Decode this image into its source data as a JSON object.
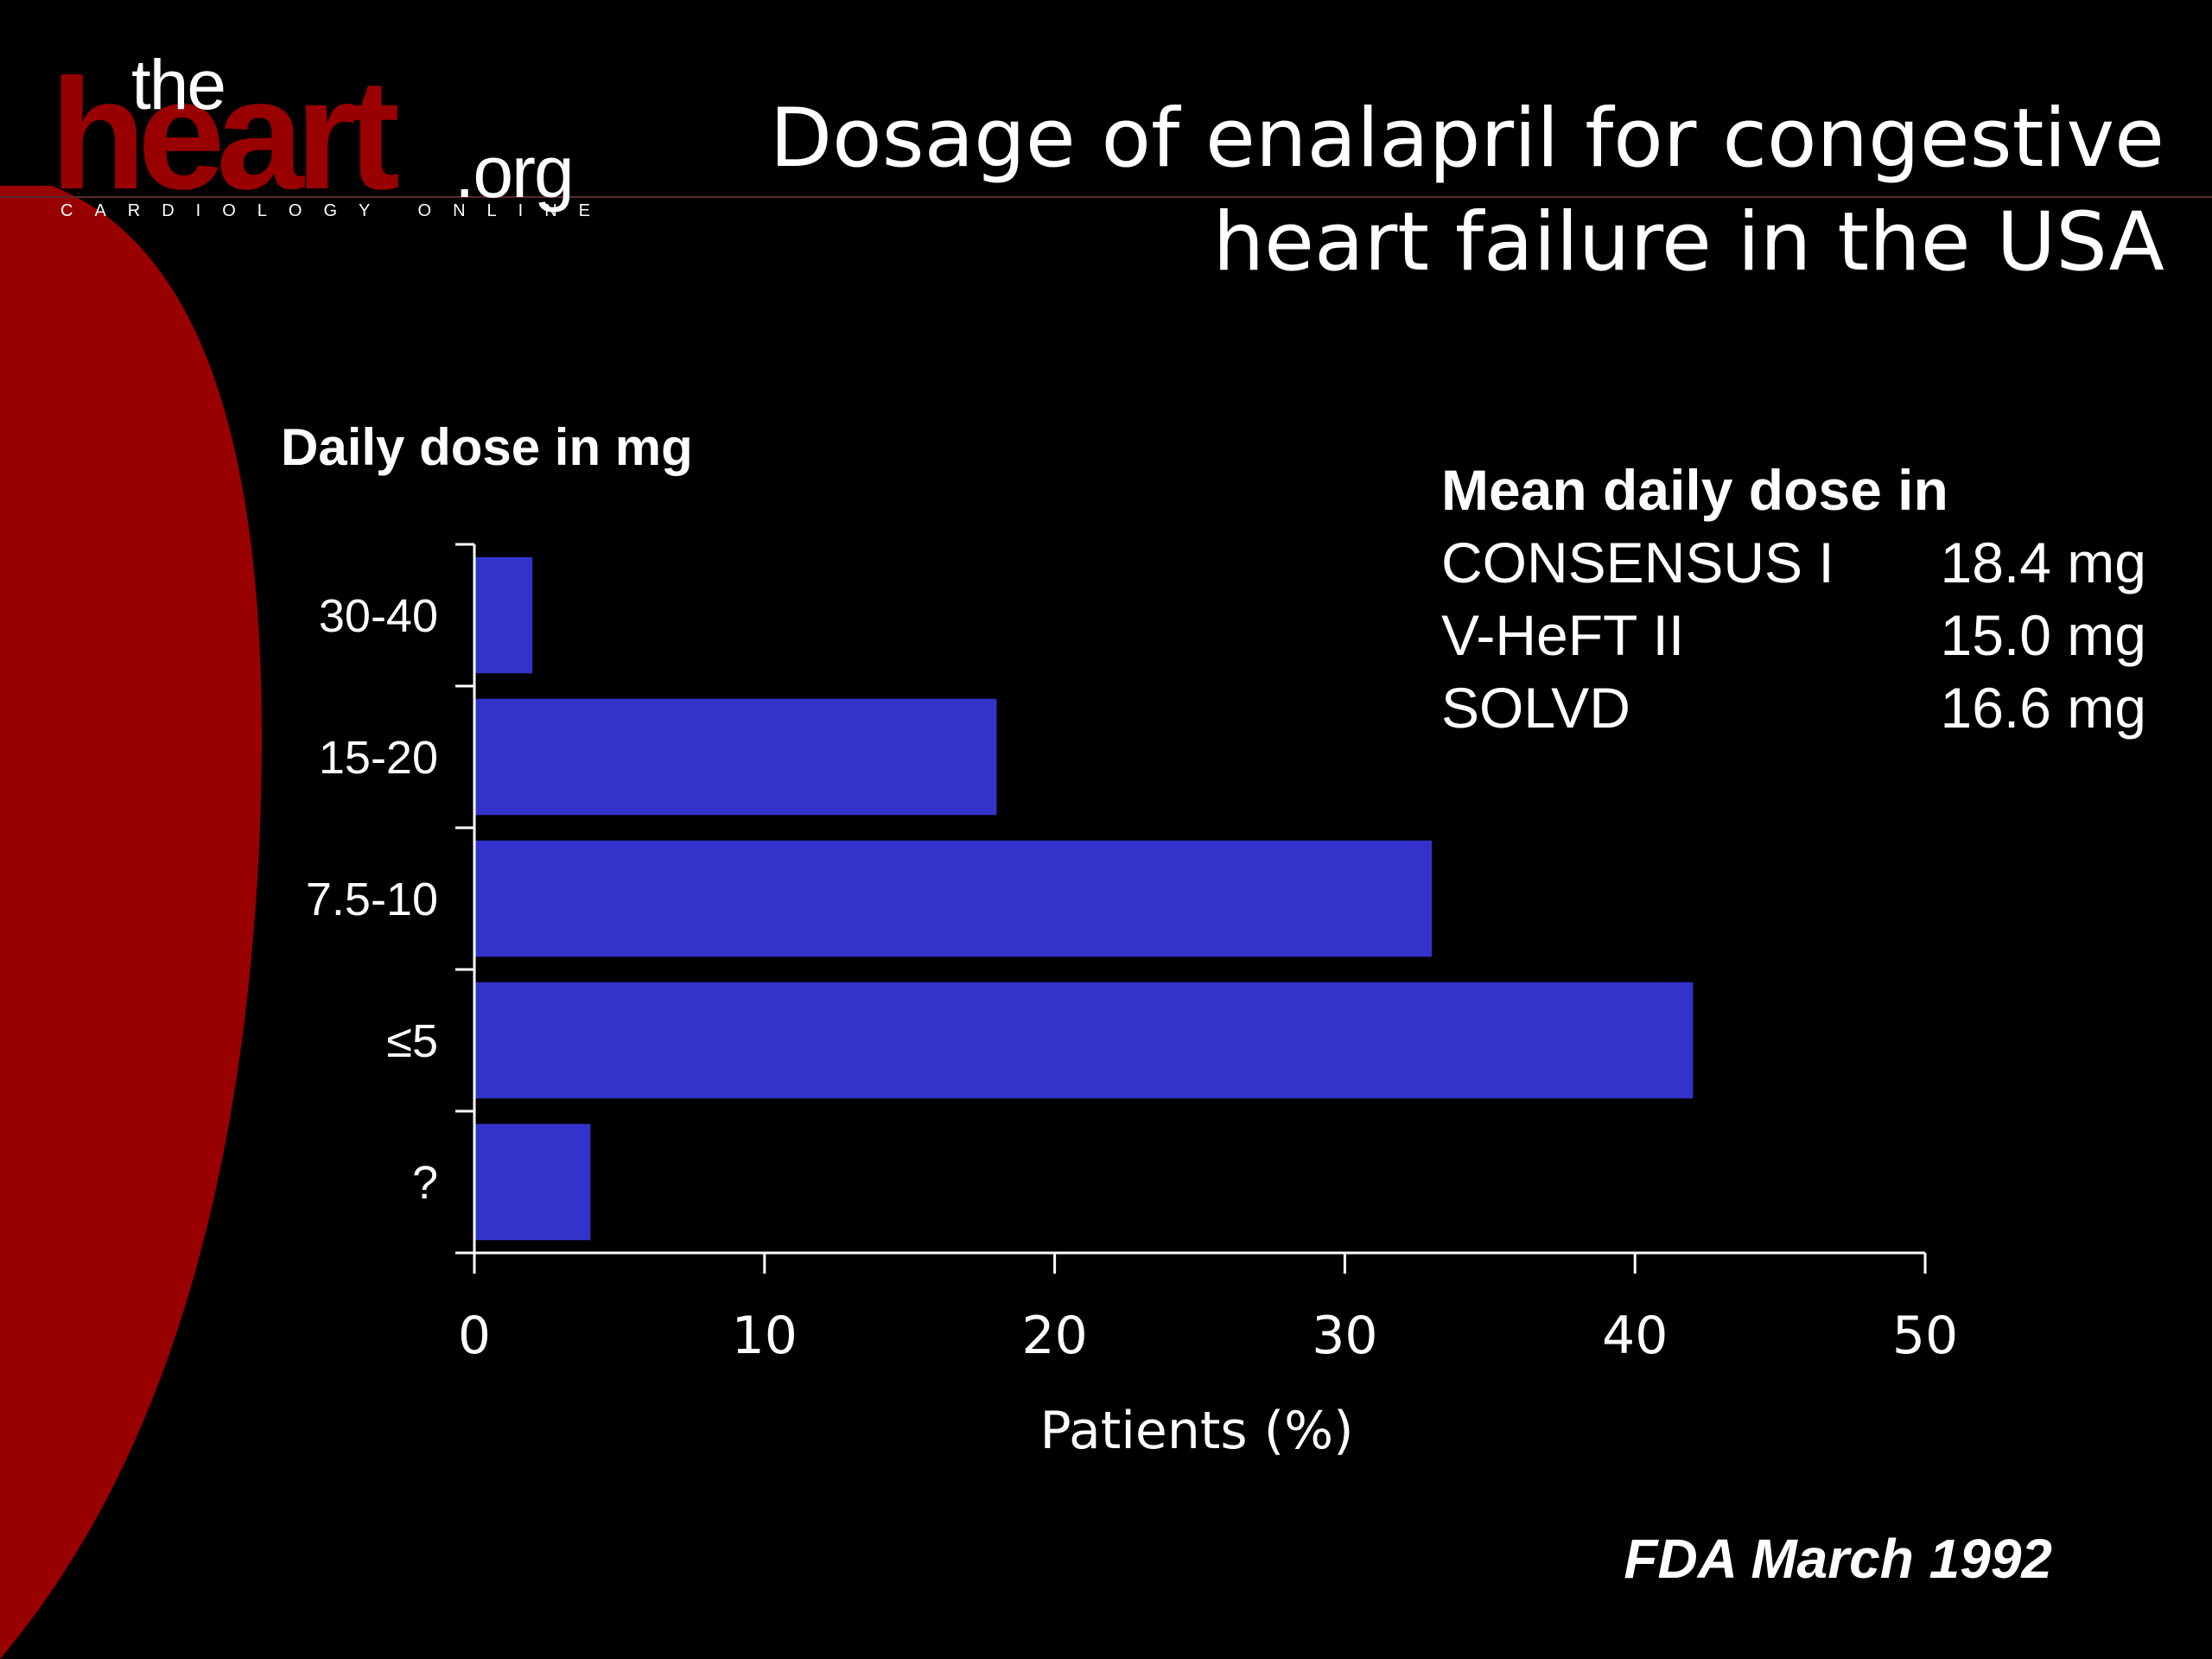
{
  "colors": {
    "background": "#000000",
    "accent_red": "#990000",
    "bar": "#3333cc",
    "text": "#ffffff"
  },
  "logo": {
    "the": "the",
    "heart": "heart",
    "org": ".org",
    "tagline": "CARDIOLOGY ONLINE"
  },
  "title": {
    "line1": "Dosage of enalapril for congestive",
    "line2": "heart failure in the USA"
  },
  "info_box": {
    "heading": "Mean daily dose in",
    "rows": [
      {
        "study": "CONSENSUS I",
        "dose": "18.4 mg"
      },
      {
        "study": "V-HeFT II",
        "dose": "15.0 mg"
      },
      {
        "study": "SOLVD",
        "dose": "16.6 mg"
      }
    ]
  },
  "source": "FDA March 1992",
  "chart_data": {
    "type": "bar",
    "orientation": "horizontal",
    "categories": [
      "30-40",
      "15-20",
      "7.5-10",
      "≤5",
      "?"
    ],
    "values": [
      2,
      18,
      33,
      42,
      4
    ],
    "xlabel": "Patients (%)",
    "ylabel": "Daily dose in mg",
    "xlim": [
      0,
      50
    ],
    "xticks": [
      "0",
      "10",
      "20",
      "30",
      "40",
      "50"
    ],
    "grid": false,
    "legend": "none"
  }
}
